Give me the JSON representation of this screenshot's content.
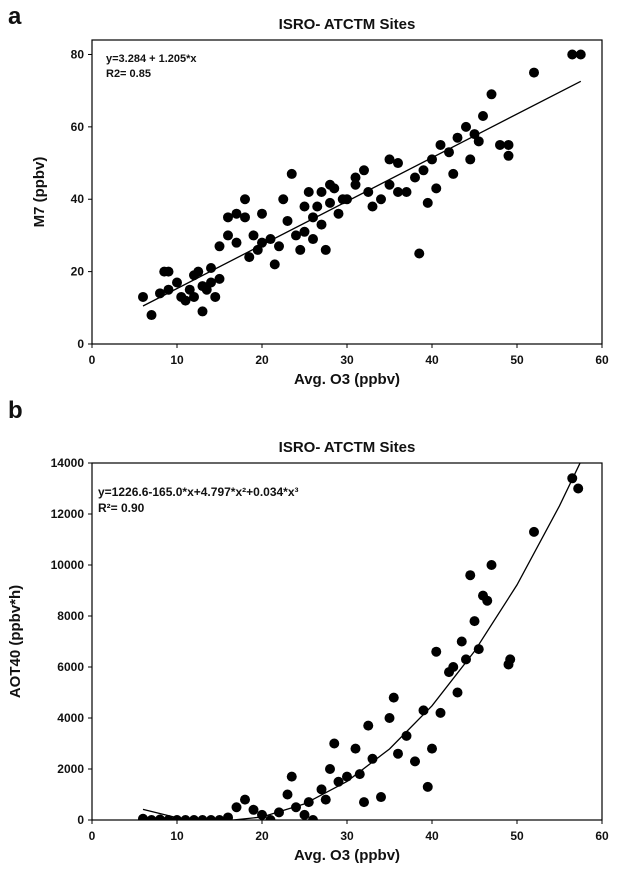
{
  "chart_data": [
    {
      "type": "scatter",
      "panel": "a",
      "title": "ISRO- ATCTM Sites",
      "xlabel": "Avg. O3 (ppbv)",
      "ylabel": "M7 (ppbv)",
      "annotations": [
        "y=3.284 + 1.205*x",
        "R2= 0.85"
      ],
      "xlim": [
        0,
        60
      ],
      "xticks": [
        0,
        10,
        20,
        30,
        40,
        50,
        60
      ],
      "ylim": [
        0,
        84
      ],
      "yticks": [
        0,
        20,
        40,
        60,
        80
      ],
      "series": [
        {
          "mode": "points",
          "color": "#000000",
          "x": [
            6,
            7,
            8,
            8.5,
            9,
            9,
            10,
            10.5,
            11,
            11.5,
            12,
            12,
            12.5,
            13,
            13,
            13.5,
            14,
            14,
            14.5,
            15,
            15,
            16,
            16,
            17,
            17,
            18,
            18,
            18.5,
            19,
            19.5,
            20,
            20,
            21,
            21.5,
            22,
            22.5,
            23,
            23.5,
            24,
            24.5,
            25,
            25,
            25.5,
            26,
            26,
            26.5,
            27,
            27,
            27.5,
            28,
            28,
            28.5,
            29,
            29.5,
            30,
            31,
            31,
            32,
            32.5,
            33,
            34,
            35,
            35,
            36,
            36,
            37,
            38,
            38.5,
            39,
            39.5,
            40,
            40.5,
            41,
            42,
            42.5,
            43,
            44,
            44.5,
            45,
            45.5,
            46,
            47,
            48,
            49,
            49,
            52,
            56.5,
            57.5
          ],
          "values": [
            13,
            8,
            14,
            20,
            20,
            15,
            17,
            13,
            12,
            15,
            13,
            19,
            20,
            16,
            9,
            15,
            21,
            17,
            13,
            18,
            27,
            30,
            35,
            36,
            28,
            40,
            35,
            24,
            30,
            26,
            36,
            28,
            29,
            22,
            27,
            40,
            34,
            47,
            30,
            26,
            38,
            31,
            42,
            35,
            29,
            38,
            42,
            33,
            26,
            44,
            39,
            43,
            36,
            40,
            40,
            46,
            44,
            48,
            42,
            38,
            40,
            51,
            44,
            50,
            42,
            42,
            46,
            25,
            48,
            39,
            51,
            43,
            55,
            53,
            47,
            57,
            60,
            51,
            58,
            56,
            63,
            69,
            55,
            52,
            55,
            75,
            80,
            80
          ]
        },
        {
          "mode": "line",
          "color": "#000000",
          "x": [
            6,
            57.5
          ],
          "values": [
            10.5,
            72.6
          ]
        }
      ]
    },
    {
      "type": "scatter",
      "panel": "b",
      "title": "ISRO- ATCTM Sites",
      "xlabel": "Avg. O3 (ppbv)",
      "ylabel": "AOT40 (ppbv*h)",
      "annotations": [
        "y=1226.6-165.0*x+4.797*x²+0.034*x³",
        "R²= 0.90"
      ],
      "xlim": [
        0,
        60
      ],
      "xticks": [
        0,
        10,
        20,
        30,
        40,
        50,
        60
      ],
      "ylim": [
        0,
        14000
      ],
      "yticks": [
        0,
        2000,
        4000,
        6000,
        8000,
        10000,
        12000,
        14000
      ],
      "series": [
        {
          "mode": "points",
          "color": "#000000",
          "x": [
            6,
            7,
            8,
            9,
            10,
            11,
            12,
            13,
            14,
            15,
            16,
            17,
            18,
            19,
            20,
            21,
            22,
            23,
            23.5,
            24,
            25,
            25.5,
            26,
            27,
            27.5,
            28,
            28.5,
            29,
            30,
            31,
            31.5,
            32,
            32.5,
            33,
            34,
            35,
            35.5,
            36,
            37,
            38,
            39,
            39.5,
            40,
            40.5,
            41,
            42,
            42.5,
            43,
            43.5,
            44,
            44.5,
            45,
            45.5,
            46,
            46.5,
            47,
            49,
            49.2,
            52,
            56.5,
            57.2
          ],
          "values": [
            50,
            0,
            20,
            0,
            0,
            0,
            0,
            0,
            0,
            0,
            100,
            500,
            800,
            400,
            200,
            0,
            300,
            1000,
            1700,
            500,
            200,
            700,
            0,
            1200,
            800,
            2000,
            3000,
            1500,
            1700,
            2800,
            1800,
            700,
            3700,
            2400,
            900,
            4000,
            4800,
            2600,
            3300,
            2300,
            4300,
            1300,
            2800,
            6600,
            4200,
            5800,
            6000,
            5000,
            7000,
            6300,
            9600,
            7800,
            6700,
            8800,
            8600,
            10000,
            6100,
            6300,
            11300,
            13400,
            13000
          ]
        },
        {
          "mode": "line",
          "color": "#000000",
          "x": [
            6,
            10,
            15,
            20,
            25,
            30,
            35,
            40,
            45,
            50,
            55,
            57.5
          ],
          "values": [
            417,
            90,
            -54,
            117,
            631,
            1512,
            2785,
            4478,
            6614,
            9219,
            12320,
            14060
          ]
        }
      ]
    }
  ]
}
